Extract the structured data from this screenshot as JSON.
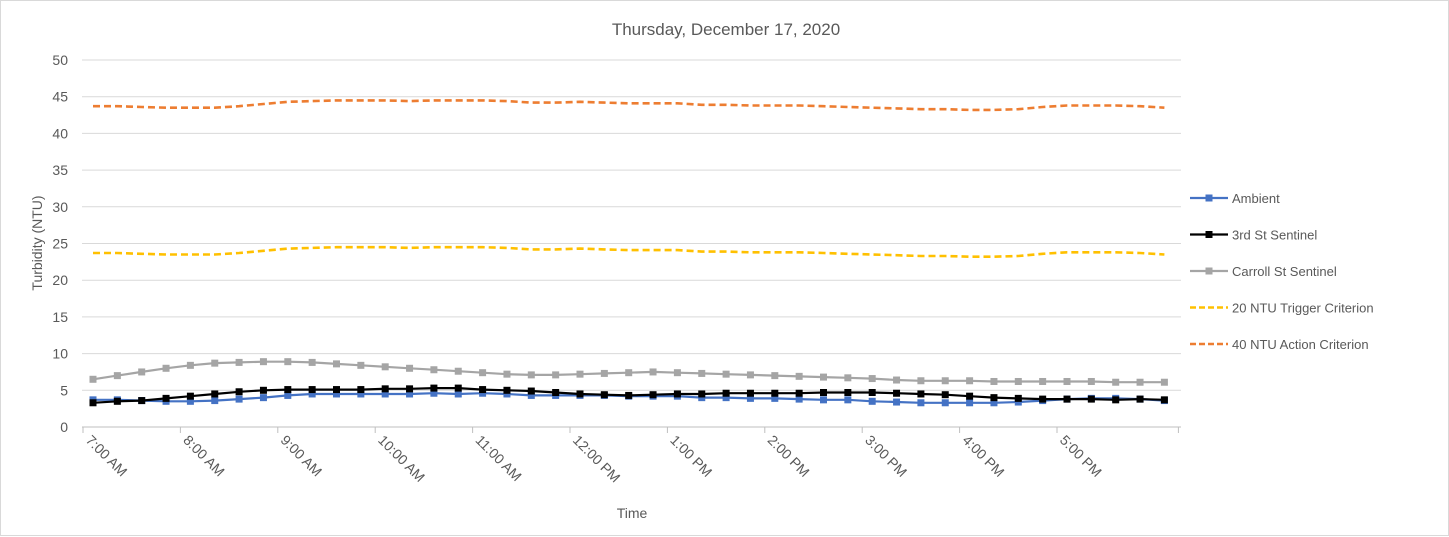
{
  "chart_data": {
    "type": "line",
    "title": "Thursday, December 17, 2020",
    "xlabel": "Time",
    "ylabel": "Turbidity (NTU)",
    "ylim": [
      0,
      50
    ],
    "yticks": [
      "0",
      "5",
      "10",
      "15",
      "20",
      "25",
      "30",
      "35",
      "40",
      "45",
      "50"
    ],
    "x_tick_labels": [
      "7:00 AM",
      "8:00 AM",
      "9:00 AM",
      "10:00 AM",
      "11:00 AM",
      "12:00 PM",
      "1:00 PM",
      "2:00 PM",
      "3:00 PM",
      "4:00 PM",
      "5:00 PM"
    ],
    "x_start": "7:00 AM",
    "x_interval_minutes": 15,
    "grid": true,
    "legend_position": "right",
    "series": [
      {
        "name": "Ambient",
        "color": "#4472C4",
        "style": "solid",
        "marker": "square",
        "values": [
          3.7,
          3.7,
          3.6,
          3.5,
          3.5,
          3.6,
          3.8,
          4.0,
          4.3,
          4.5,
          4.5,
          4.5,
          4.5,
          4.5,
          4.6,
          4.5,
          4.6,
          4.5,
          4.3,
          4.3,
          4.3,
          4.3,
          4.2,
          4.2,
          4.2,
          4.0,
          4.0,
          3.9,
          3.9,
          3.8,
          3.7,
          3.7,
          3.5,
          3.4,
          3.3,
          3.3,
          3.3,
          3.3,
          3.4,
          3.6,
          3.8,
          3.9,
          3.9,
          3.8,
          3.6
        ]
      },
      {
        "name": "3rd St Sentinel",
        "color": "#000000",
        "style": "solid",
        "marker": "square",
        "values": [
          3.3,
          3.5,
          3.6,
          3.9,
          4.2,
          4.5,
          4.8,
          5.0,
          5.1,
          5.1,
          5.1,
          5.1,
          5.2,
          5.2,
          5.3,
          5.3,
          5.1,
          5.0,
          4.9,
          4.7,
          4.5,
          4.4,
          4.3,
          4.4,
          4.5,
          4.5,
          4.6,
          4.6,
          4.6,
          4.6,
          4.7,
          4.7,
          4.7,
          4.6,
          4.5,
          4.4,
          4.2,
          4.0,
          3.9,
          3.8,
          3.8,
          3.8,
          3.7,
          3.8,
          3.7
        ]
      },
      {
        "name": "Carroll St Sentinel",
        "color": "#A5A5A5",
        "style": "solid",
        "marker": "square",
        "values": [
          6.5,
          7.0,
          7.5,
          8.0,
          8.4,
          8.7,
          8.8,
          8.9,
          8.9,
          8.8,
          8.6,
          8.4,
          8.2,
          8.0,
          7.8,
          7.6,
          7.4,
          7.2,
          7.1,
          7.1,
          7.2,
          7.3,
          7.4,
          7.5,
          7.4,
          7.3,
          7.2,
          7.1,
          7.0,
          6.9,
          6.8,
          6.7,
          6.6,
          6.4,
          6.3,
          6.3,
          6.3,
          6.2,
          6.2,
          6.2,
          6.2,
          6.2,
          6.1,
          6.1,
          6.1
        ]
      },
      {
        "name": "20 NTU Trigger Criterion",
        "color": "#FFC000",
        "style": "dashed",
        "marker": "none",
        "values": [
          23.7,
          23.7,
          23.6,
          23.5,
          23.5,
          23.5,
          23.7,
          24.0,
          24.3,
          24.4,
          24.5,
          24.5,
          24.5,
          24.4,
          24.5,
          24.5,
          24.5,
          24.4,
          24.2,
          24.2,
          24.3,
          24.2,
          24.1,
          24.1,
          24.1,
          23.9,
          23.9,
          23.8,
          23.8,
          23.8,
          23.7,
          23.6,
          23.5,
          23.4,
          23.3,
          23.3,
          23.2,
          23.2,
          23.3,
          23.6,
          23.8,
          23.8,
          23.8,
          23.7,
          23.5
        ]
      },
      {
        "name": "40 NTU Action Criterion",
        "color": "#ED7D31",
        "style": "dashed",
        "marker": "none",
        "values": [
          43.7,
          43.7,
          43.6,
          43.5,
          43.5,
          43.5,
          43.7,
          44.0,
          44.3,
          44.4,
          44.5,
          44.5,
          44.5,
          44.4,
          44.5,
          44.5,
          44.5,
          44.4,
          44.2,
          44.2,
          44.3,
          44.2,
          44.1,
          44.1,
          44.1,
          43.9,
          43.9,
          43.8,
          43.8,
          43.8,
          43.7,
          43.6,
          43.5,
          43.4,
          43.3,
          43.3,
          43.2,
          43.2,
          43.3,
          43.6,
          43.8,
          43.8,
          43.8,
          43.7,
          43.5
        ]
      }
    ]
  }
}
